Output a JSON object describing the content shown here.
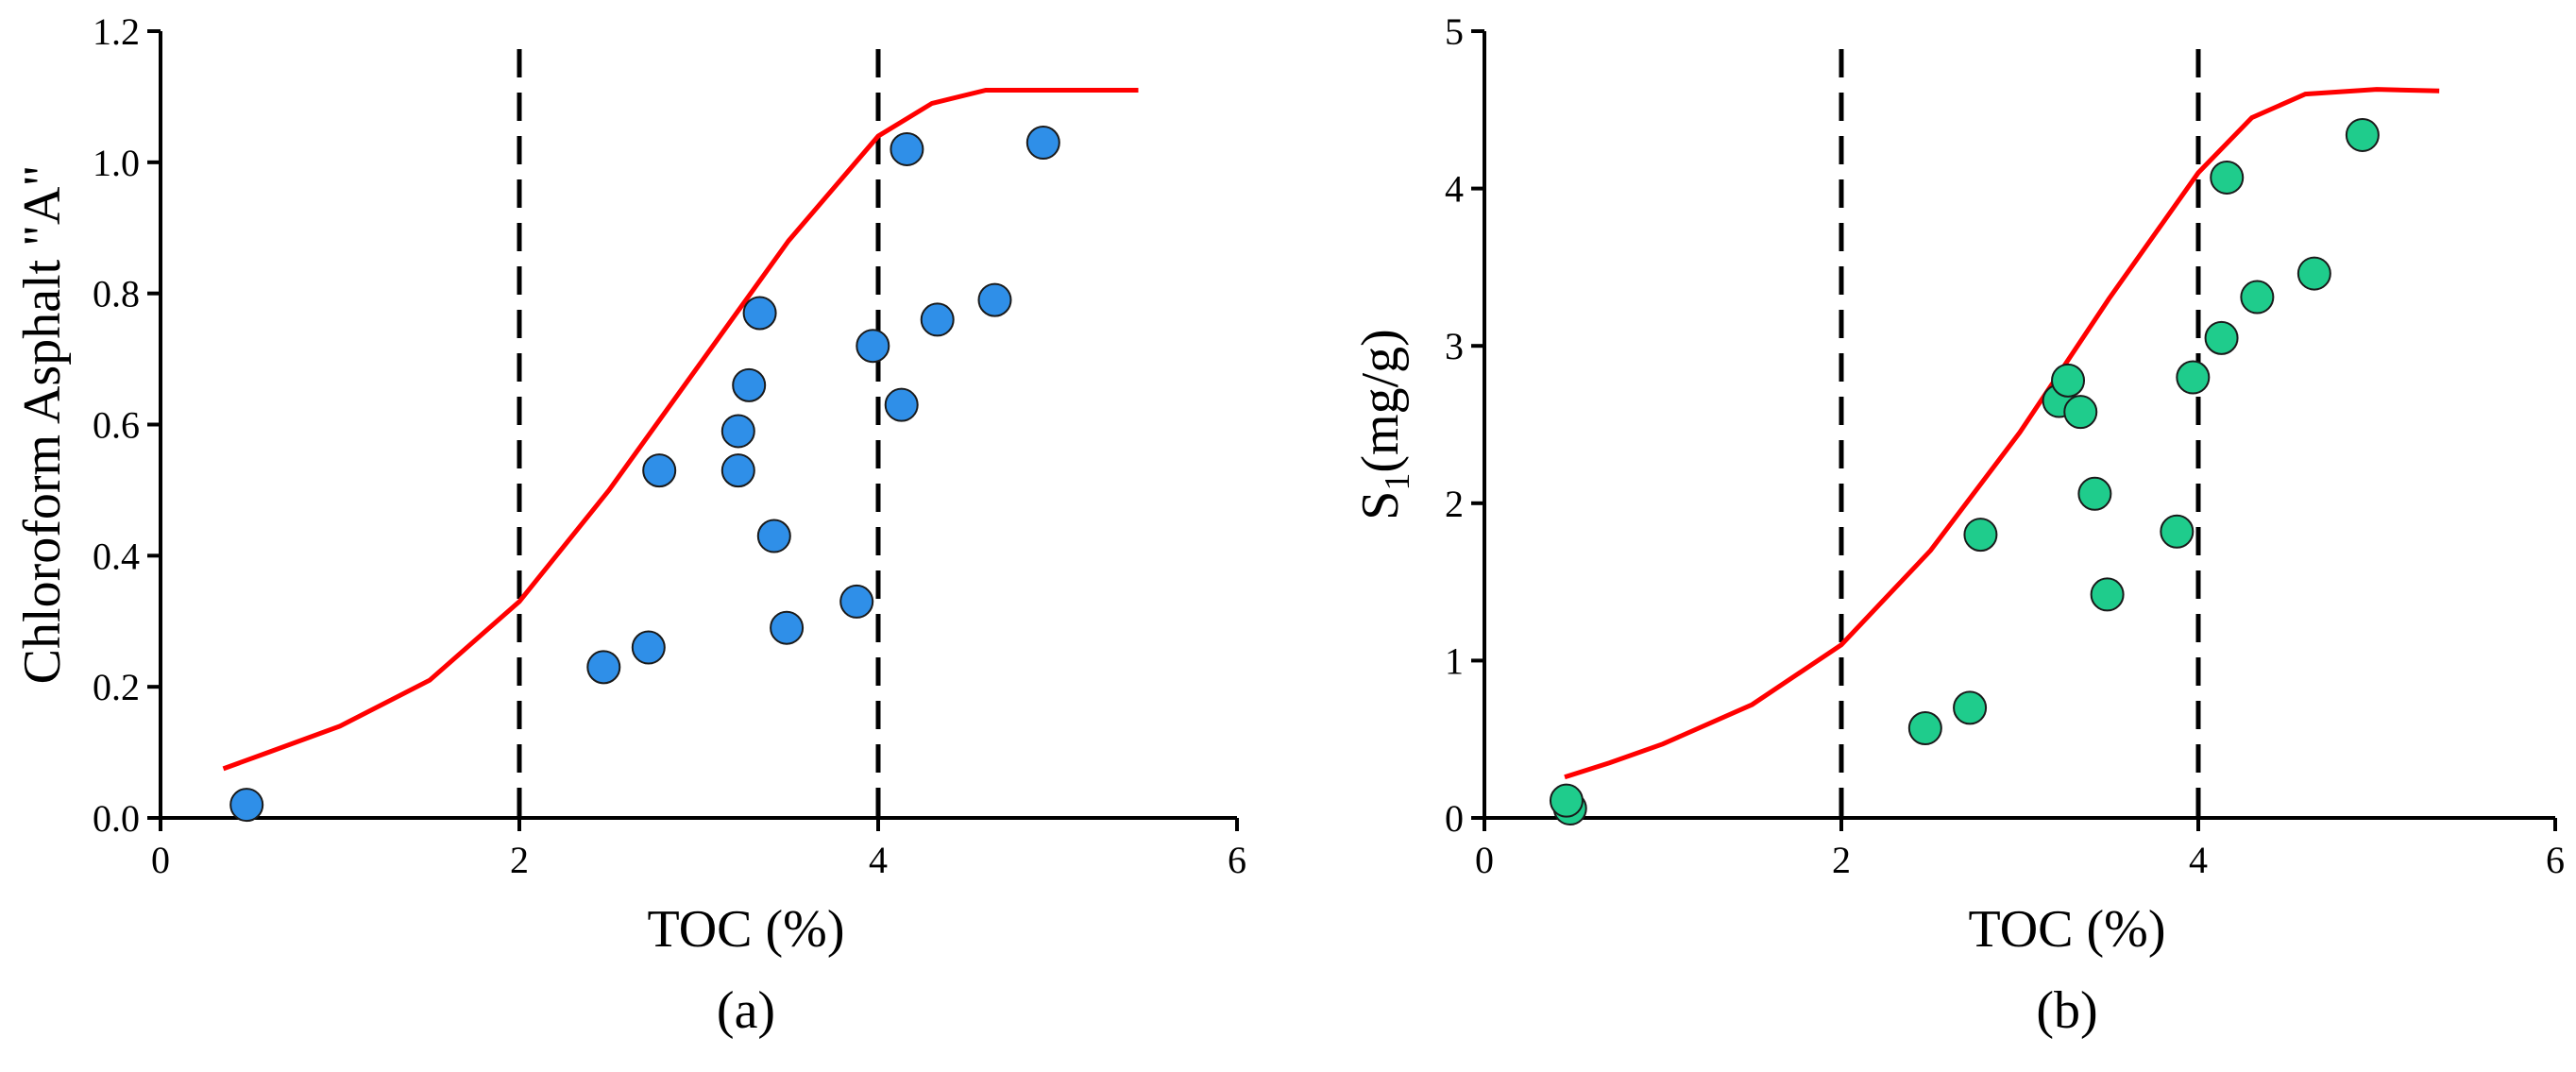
{
  "chart_data": [
    {
      "type": "scatter",
      "panel_label": "(a)",
      "xlabel": "TOC (%)",
      "ylabel": "Chloroform Asphalt \"A\"",
      "xlim": [
        0,
        6
      ],
      "ylim": [
        0,
        1.2
      ],
      "x_ticks": [
        "0",
        "2",
        "4",
        "6"
      ],
      "y_ticks": [
        "0.0",
        "0.2",
        "0.4",
        "0.6",
        "0.8",
        "1.0",
        "1.2"
      ],
      "x_tick_values": [
        0,
        2,
        4,
        6
      ],
      "y_tick_values": [
        0,
        0.2,
        0.4,
        0.6,
        0.8,
        1.0,
        1.2
      ],
      "vertical_dashed_lines_x": [
        2,
        4
      ],
      "point_color": "#2f8fe8",
      "curve_color": "#ff0000",
      "points": [
        {
          "x": 0.48,
          "y": 0.02
        },
        {
          "x": 2.47,
          "y": 0.23
        },
        {
          "x": 2.72,
          "y": 0.26
        },
        {
          "x": 2.78,
          "y": 0.53
        },
        {
          "x": 3.22,
          "y": 0.59
        },
        {
          "x": 3.22,
          "y": 0.53
        },
        {
          "x": 3.28,
          "y": 0.66
        },
        {
          "x": 3.34,
          "y": 0.77
        },
        {
          "x": 3.42,
          "y": 0.43
        },
        {
          "x": 3.49,
          "y": 0.29
        },
        {
          "x": 3.88,
          "y": 0.33
        },
        {
          "x": 3.97,
          "y": 0.72
        },
        {
          "x": 4.13,
          "y": 0.63
        },
        {
          "x": 4.16,
          "y": 1.02
        },
        {
          "x": 4.33,
          "y": 0.76
        },
        {
          "x": 4.65,
          "y": 0.79
        },
        {
          "x": 4.92,
          "y": 1.03
        }
      ],
      "curve": [
        {
          "x": 0.35,
          "y": 0.075
        },
        {
          "x": 0.6,
          "y": 0.1
        },
        {
          "x": 1.0,
          "y": 0.14
        },
        {
          "x": 1.5,
          "y": 0.21
        },
        {
          "x": 2.0,
          "y": 0.33
        },
        {
          "x": 2.5,
          "y": 0.5
        },
        {
          "x": 3.0,
          "y": 0.69
        },
        {
          "x": 3.5,
          "y": 0.88
        },
        {
          "x": 4.0,
          "y": 1.04
        },
        {
          "x": 4.3,
          "y": 1.09
        },
        {
          "x": 4.6,
          "y": 1.11
        },
        {
          "x": 5.0,
          "y": 1.11
        },
        {
          "x": 5.45,
          "y": 1.11
        }
      ]
    },
    {
      "type": "scatter",
      "panel_label": "(b)",
      "xlabel": "TOC (%)",
      "ylabel_main": "S",
      "ylabel_sub": "1",
      "ylabel_rest": "(mg/g)",
      "xlim": [
        0,
        6
      ],
      "ylim": [
        0,
        5
      ],
      "x_ticks": [
        "0",
        "2",
        "4",
        "6"
      ],
      "y_ticks": [
        "0",
        "1",
        "2",
        "3",
        "4",
        "5"
      ],
      "x_tick_values": [
        0,
        2,
        4,
        6
      ],
      "y_tick_values": [
        0,
        1,
        2,
        3,
        4,
        5
      ],
      "vertical_dashed_lines_x": [
        2,
        4
      ],
      "point_color": "#1fcc8c",
      "curve_color": "#ff0000",
      "points": [
        {
          "x": 0.48,
          "y": 0.06
        },
        {
          "x": 0.46,
          "y": 0.11
        },
        {
          "x": 2.47,
          "y": 0.57
        },
        {
          "x": 2.72,
          "y": 0.7
        },
        {
          "x": 2.78,
          "y": 1.8
        },
        {
          "x": 3.22,
          "y": 2.65
        },
        {
          "x": 3.27,
          "y": 2.78
        },
        {
          "x": 3.34,
          "y": 2.58
        },
        {
          "x": 3.42,
          "y": 2.06
        },
        {
          "x": 3.49,
          "y": 1.42
        },
        {
          "x": 3.88,
          "y": 1.82
        },
        {
          "x": 3.97,
          "y": 2.8
        },
        {
          "x": 4.13,
          "y": 3.05
        },
        {
          "x": 4.16,
          "y": 4.07
        },
        {
          "x": 4.33,
          "y": 3.31
        },
        {
          "x": 4.65,
          "y": 3.46
        },
        {
          "x": 4.92,
          "y": 4.34
        }
      ],
      "curve": [
        {
          "x": 0.45,
          "y": 0.26
        },
        {
          "x": 0.7,
          "y": 0.35
        },
        {
          "x": 1.0,
          "y": 0.47
        },
        {
          "x": 1.5,
          "y": 0.72
        },
        {
          "x": 2.0,
          "y": 1.1
        },
        {
          "x": 2.5,
          "y": 1.7
        },
        {
          "x": 3.0,
          "y": 2.45
        },
        {
          "x": 3.5,
          "y": 3.3
        },
        {
          "x": 4.0,
          "y": 4.1
        },
        {
          "x": 4.3,
          "y": 4.45
        },
        {
          "x": 4.6,
          "y": 4.6
        },
        {
          "x": 5.0,
          "y": 4.63
        },
        {
          "x": 5.35,
          "y": 4.62
        }
      ]
    }
  ]
}
